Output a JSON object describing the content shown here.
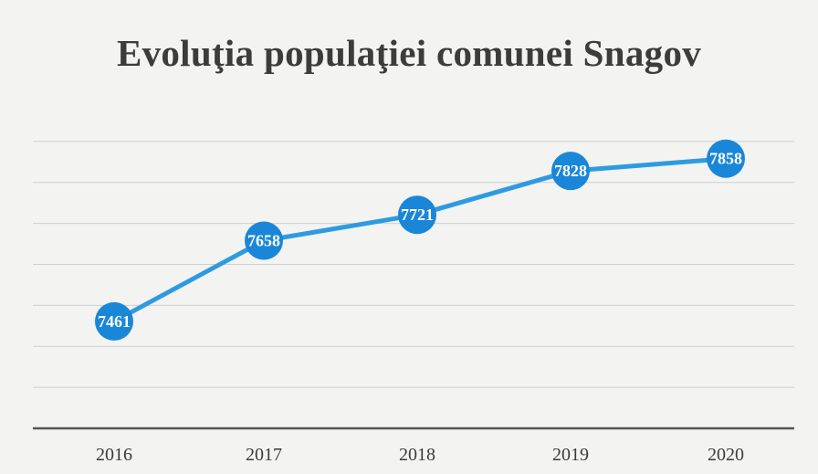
{
  "chart_data": {
    "type": "line",
    "title": "Evoluţia populaţiei comunei Snagov",
    "xlabel": "",
    "ylabel": "",
    "categories": [
      "2016",
      "2017",
      "2018",
      "2019",
      "2020"
    ],
    "series": [
      {
        "values": [
          7461,
          7658,
          7721,
          7828,
          7858
        ],
        "data_labels": [
          "7461",
          "7658",
          "7721",
          "7828",
          "7858"
        ]
      }
    ],
    "ylim": [
      7200,
      8000
    ],
    "grid": true,
    "legend": "none",
    "colors": {
      "line": "#2e9be0",
      "marker": "#1a86d8",
      "grid": "#cfcfcf",
      "axis": "#555555"
    }
  }
}
